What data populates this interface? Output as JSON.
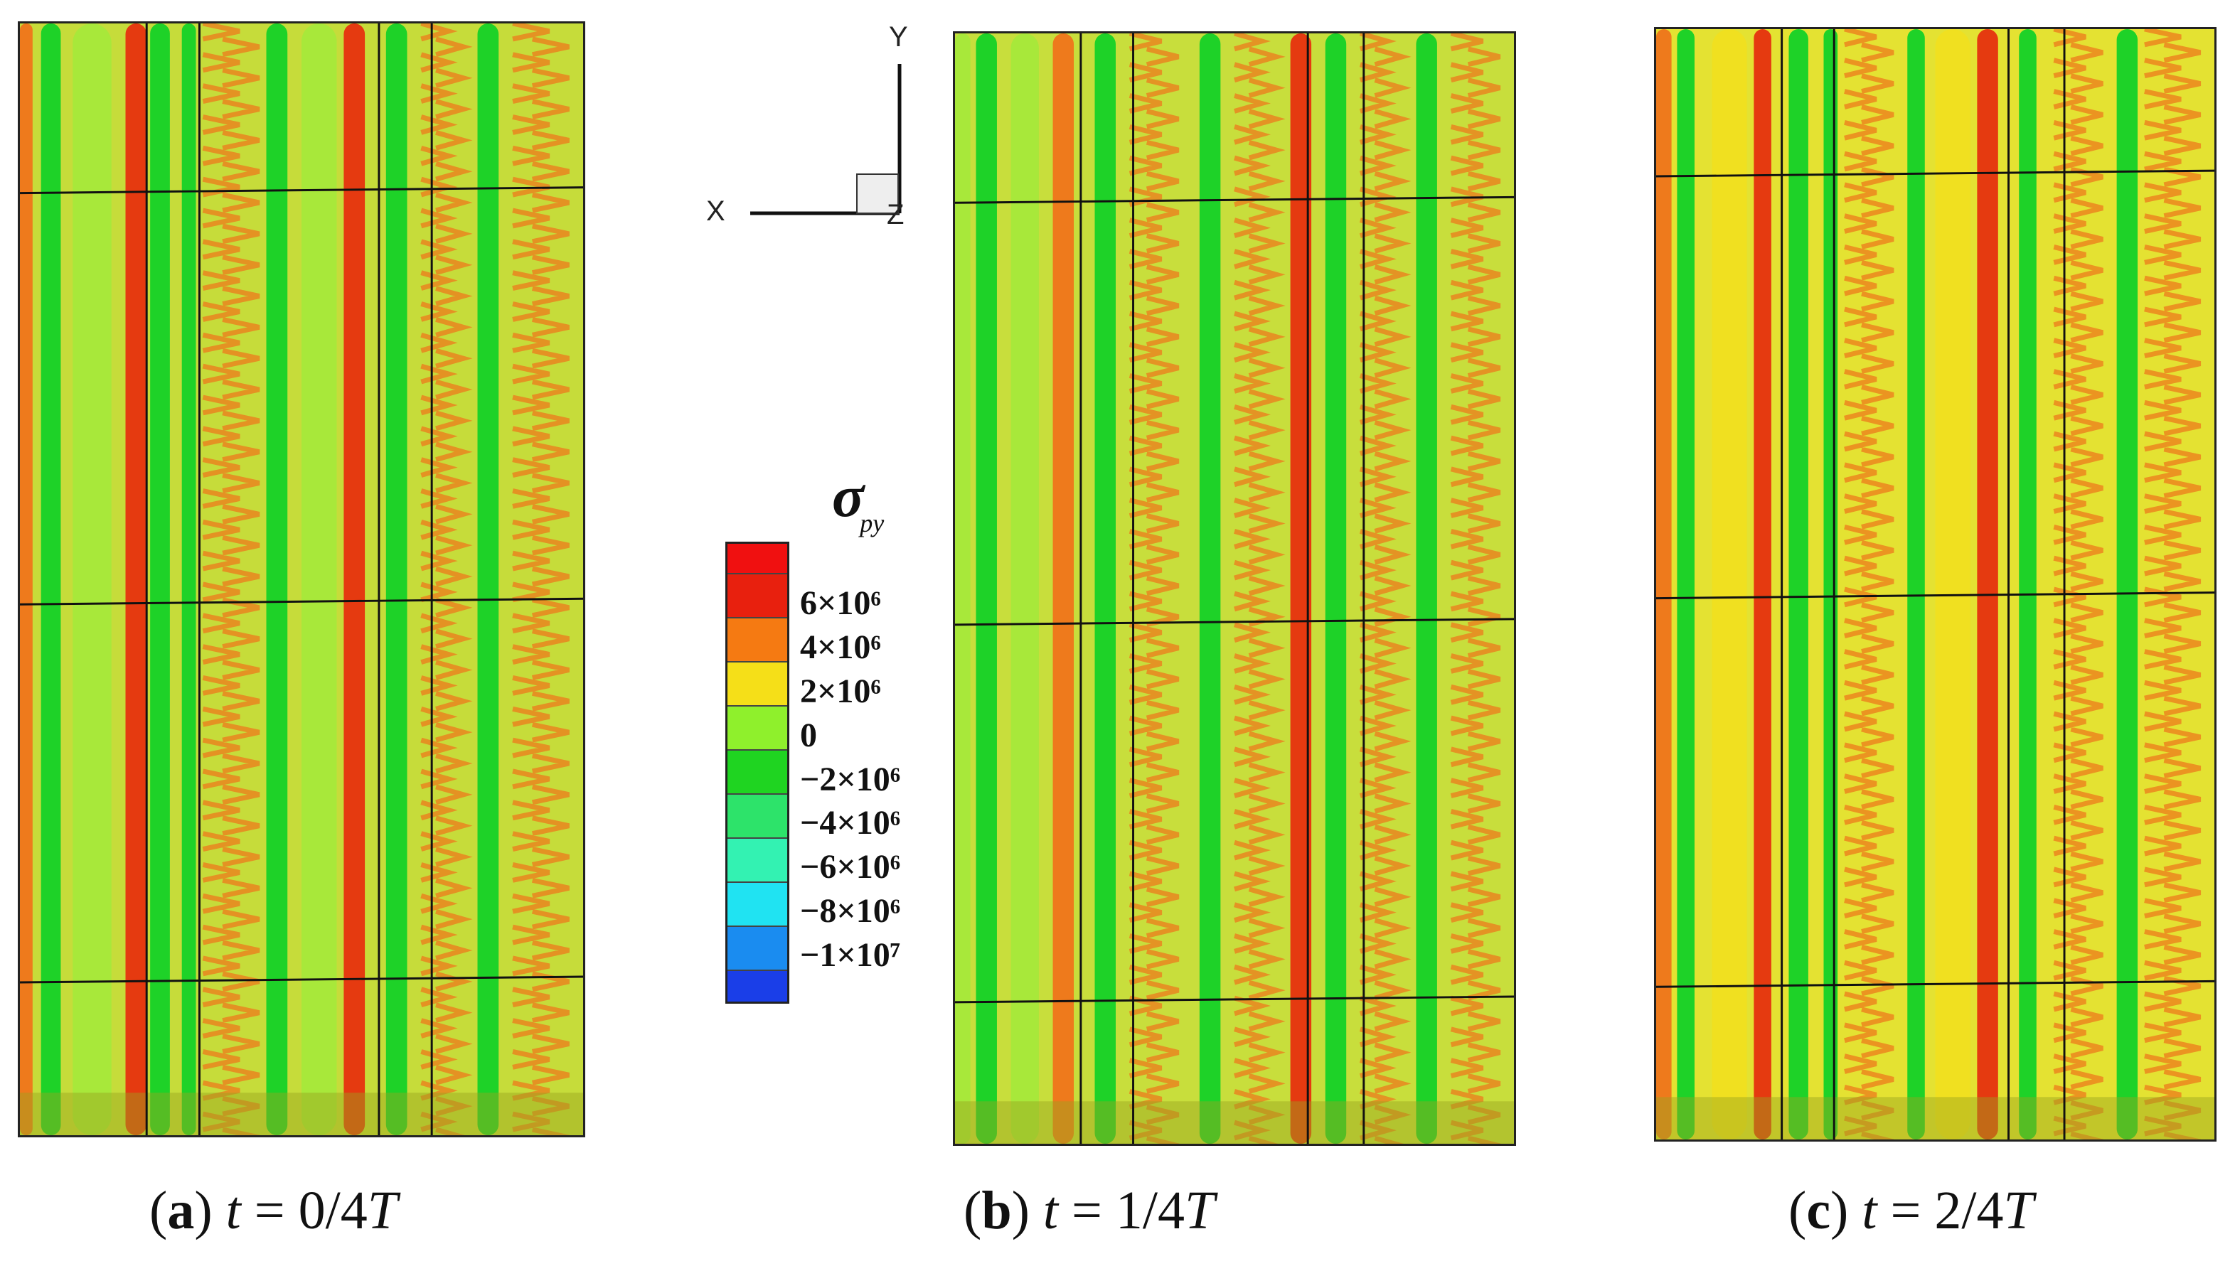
{
  "figure": {
    "panels": [
      {
        "id": "a",
        "letter": "a",
        "time_var": "t",
        "time_value": "0/4",
        "period": "T"
      },
      {
        "id": "b",
        "letter": "b",
        "time_var": "t",
        "time_value": "1/4",
        "period": "T"
      },
      {
        "id": "c",
        "letter": "c",
        "time_var": "t",
        "time_value": "2/4",
        "period": "T"
      }
    ],
    "axes": {
      "x": "X",
      "y": "Y",
      "z": "Z"
    },
    "legend": {
      "symbol": "σ",
      "subscript": "py",
      "levels": [
        {
          "label": "6×10⁶",
          "color": "#e8200e"
        },
        {
          "label": "4×10⁶",
          "color": "#f57a12"
        },
        {
          "label": "2×10⁶",
          "color": "#f5df18"
        },
        {
          "label": "0",
          "color": "#8ff02c"
        },
        {
          "label": "−2×10⁶",
          "color": "#1fd421"
        },
        {
          "label": "−4×10⁶",
          "color": "#2de36a"
        },
        {
          "label": "−6×10⁶",
          "color": "#33f2b2"
        },
        {
          "label": "−8×10⁶",
          "color": "#20e3f2"
        },
        {
          "label": "−1×10⁷",
          "color": "#1a8cf0"
        }
      ],
      "bottom_color": "#1a3ee8",
      "top_color": "#f01010"
    }
  }
}
